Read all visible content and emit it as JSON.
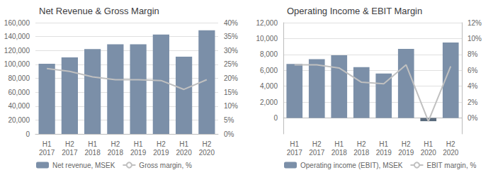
{
  "chart_data": [
    {
      "type": "bar",
      "title": "Net Revenue & Gross Margin",
      "categories": [
        "H1\n2017",
        "H2\n2017",
        "H1\n2018",
        "H2\n2018",
        "H1\n2019",
        "H2\n2019",
        "H1\n2020",
        "H2\n2020"
      ],
      "series": [
        {
          "name": "Net revenue, MSEK",
          "type": "bar",
          "color": "#7B8FA8",
          "values": [
            101000,
            110000,
            122000,
            129000,
            129000,
            143000,
            111000,
            149000
          ]
        },
        {
          "name": "Gross margin, %",
          "type": "line",
          "color": "#c0c0c0",
          "axis": "y2",
          "values": [
            23.5,
            22.5,
            20.5,
            19.5,
            19.5,
            19.2,
            16.0,
            19.5
          ]
        }
      ],
      "ylim": [
        0,
        160000
      ],
      "yticks": [
        0,
        {
          "value": 20000,
          "label": "20,000"
        },
        {
          "value": 40000,
          "label": "40,000"
        },
        {
          "value": 60000,
          "label": "60,000"
        },
        {
          "value": 80000,
          "label": "80,000"
        },
        {
          "value": 100000,
          "label": "100,000"
        },
        {
          "value": 120000,
          "label": "120,000"
        },
        {
          "value": 140000,
          "label": "140,000"
        },
        {
          "value": 160000,
          "label": "160,000"
        }
      ],
      "y2lim": [
        0,
        40
      ],
      "y2ticks": [
        {
          "value": 0,
          "label": "0%"
        },
        {
          "value": 5,
          "label": "5%"
        },
        {
          "value": 10,
          "label": "10%"
        },
        {
          "value": 15,
          "label": "15%"
        },
        {
          "value": 20,
          "label": "20%"
        },
        {
          "value": 25,
          "label": "25%"
        },
        {
          "value": 30,
          "label": "30%"
        },
        {
          "value": 35,
          "label": "35%"
        },
        {
          "value": 40,
          "label": "40%"
        }
      ],
      "grid": true,
      "legend": "bottom"
    },
    {
      "type": "bar",
      "title": "Operating Income & EBIT Margin",
      "categories": [
        "H1\n2017",
        "H2\n2017",
        "H1\n2018",
        "H2\n2018",
        "H1\n2019",
        "H2\n2019",
        "H1\n2020",
        "H2\n2020"
      ],
      "series": [
        {
          "name": "Operating income (EBIT), MSEK",
          "type": "bar",
          "colors": [
            "#7B8FA8",
            "#7B8FA8",
            "#7B8FA8",
            "#7B8FA8",
            "#7B8FA8",
            "#7B8FA8",
            "#5a6b7d",
            "#7B8FA8"
          ],
          "values": [
            6800,
            7400,
            7900,
            6400,
            5600,
            8700,
            -400,
            9500
          ]
        },
        {
          "name": "EBIT margin, %",
          "type": "line",
          "color": "#c0c0c0",
          "axis": "y2",
          "values": [
            6.7,
            6.7,
            6.3,
            4.5,
            4.3,
            6.7,
            -0.4,
            6.5
          ]
        }
      ],
      "ylim": [
        -2000,
        12000
      ],
      "yticks": [
        0,
        {
          "value": 2000,
          "label": "2,000"
        },
        {
          "value": 4000,
          "label": "4,000"
        },
        {
          "value": 6000,
          "label": "6,000"
        },
        {
          "value": 8000,
          "label": "8,000"
        },
        {
          "value": 10000,
          "label": "10,000"
        },
        {
          "value": 12000,
          "label": "12,000"
        }
      ],
      "y2lim": [
        -2,
        12
      ],
      "y2ticks": [
        {
          "value": 0,
          "label": "0%"
        },
        {
          "value": 2,
          "label": "2%"
        },
        {
          "value": 4,
          "label": "4%"
        },
        {
          "value": 6,
          "label": "6%"
        },
        {
          "value": 8,
          "label": "8%"
        },
        {
          "value": 10,
          "label": "10%"
        },
        {
          "value": 12,
          "label": "12%"
        }
      ],
      "grid": true,
      "legend": "bottom"
    }
  ]
}
